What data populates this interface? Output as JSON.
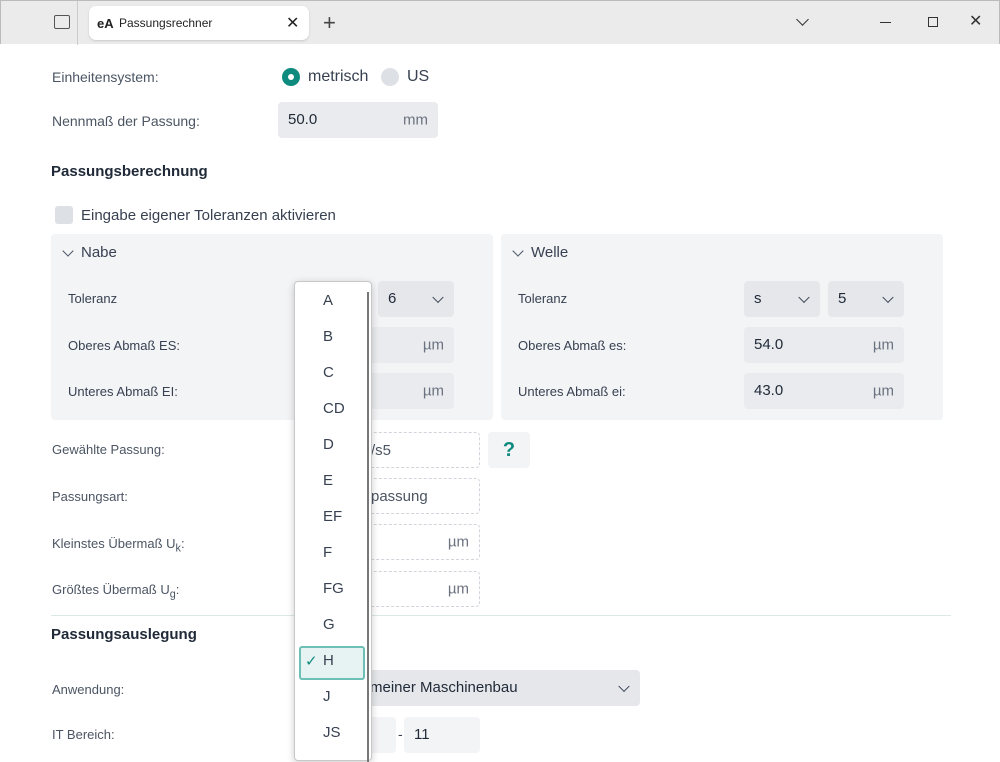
{
  "tabbar": {
    "tab_icon": "eA",
    "tab_title": "Passungsrechner"
  },
  "units": {
    "label": "Einheitensystem:",
    "options": [
      "metrisch",
      "US"
    ],
    "selected": "metrisch"
  },
  "nominal": {
    "label": "Nennmaß der Passung:",
    "value": "50.0",
    "unit": "mm"
  },
  "section1": "Passungsberechnung",
  "custom_tol": {
    "label": "Eingabe eigener Toleranzen aktivieren",
    "checked": false
  },
  "nabe": {
    "title": "Nabe",
    "tol_label": "Toleranz",
    "grade": "6",
    "upper_label": "Oberes Abmaß ES:",
    "upper_unit": "µm",
    "lower_label": "Unteres Abmaß EI:",
    "lower_unit": "µm"
  },
  "welle": {
    "title": "Welle",
    "tol_label": "Toleranz",
    "letter": "s",
    "grade": "5",
    "upper_label": "Oberes Abmaß es:",
    "upper_value": "54.0",
    "upper_unit": "µm",
    "lower_label": "Unteres Abmaß ei:",
    "lower_value": "43.0",
    "lower_unit": "µm"
  },
  "results": {
    "fit_label": "Gewählte Passung:",
    "fit_value": "/s5",
    "help": "?",
    "type_label": "Passungsart:",
    "type_value": "passung",
    "min_label": "Kleinstes Übermaß U",
    "min_sub": "k",
    "min_unit": "µm",
    "max_label": "Größtes Übermaß U",
    "max_sub": "g",
    "max_unit": "µm"
  },
  "section2": "Passungsauslegung",
  "application": {
    "label": "Anwendung:",
    "value": "meiner Maschinenbau"
  },
  "it_range": {
    "label": "IT Bereich:",
    "sep": "-",
    "to": "11"
  },
  "dropdown": {
    "items": [
      "A",
      "B",
      "C",
      "CD",
      "D",
      "E",
      "EF",
      "F",
      "FG",
      "G",
      "H",
      "J",
      "JS"
    ],
    "selected": "H"
  },
  "colors": {
    "accent": "#0f8a7e"
  }
}
